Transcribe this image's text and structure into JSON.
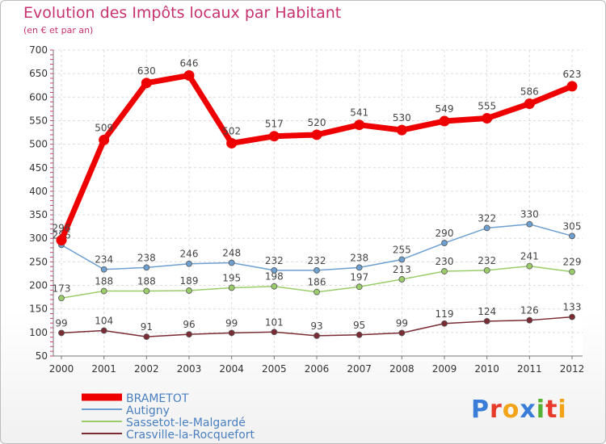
{
  "title": "Evolution des Impôts locaux par Habitant",
  "subtitle": "(en € et par an)",
  "logo": {
    "text": "Proxiti",
    "colors": [
      "#3a7dd8",
      "#e83a2a",
      "#f2a317",
      "#3a7dd8",
      "#55b234",
      "#e83a2a",
      "#f2a317"
    ]
  },
  "chart_data": {
    "type": "line",
    "title": "Evolution des Impôts locaux par Habitant",
    "subtitle": "(en € et par an)",
    "x": [
      2000,
      2001,
      2002,
      2003,
      2004,
      2005,
      2006,
      2007,
      2008,
      2009,
      2010,
      2011,
      2012
    ],
    "ylim": [
      50,
      700
    ],
    "yticks": [
      50,
      100,
      150,
      200,
      250,
      300,
      350,
      400,
      450,
      500,
      550,
      600,
      650,
      700
    ],
    "grid": true,
    "legend_position": "bottom-left",
    "series": [
      {
        "name": "BRAMETOT",
        "color": "#ee0000",
        "values": [
          296,
          509,
          630,
          646,
          502,
          517,
          520,
          541,
          530,
          549,
          555,
          586,
          623
        ],
        "labels": [
          "296",
          "509",
          "630",
          "646",
          "502",
          "517",
          "520",
          "541",
          "530",
          "549",
          "555",
          "586",
          "623"
        ]
      },
      {
        "name": "Autigny",
        "color": "#6d9fd0",
        "values": [
          286,
          234,
          238,
          246,
          248,
          232,
          232,
          238,
          255,
          290,
          322,
          330,
          305
        ],
        "labels": [
          "286",
          "234",
          "238",
          "246",
          "248",
          "232",
          "232",
          "238",
          "255",
          "290",
          "322",
          "330",
          "305"
        ]
      },
      {
        "name": "Sassetot-le-Malgardé",
        "color": "#9acd6a",
        "values": [
          173,
          188,
          188,
          189,
          195,
          198,
          186,
          197,
          213,
          230,
          232,
          241,
          229
        ],
        "labels": [
          "173",
          "188",
          "188",
          "189",
          "195",
          "198",
          "186",
          "197",
          "213",
          "230",
          "232",
          "241",
          "229"
        ]
      },
      {
        "name": "Crasville-la-Rocquefort",
        "color": "#7a2b33",
        "values": [
          99,
          104,
          91,
          96,
          99,
          101,
          93,
          95,
          99,
          119,
          124,
          126,
          133
        ],
        "labels": [
          "99",
          "104",
          "91",
          "96",
          "99",
          "101",
          "93",
          "95",
          "99",
          "119",
          "124",
          "126",
          "133"
        ]
      }
    ]
  }
}
